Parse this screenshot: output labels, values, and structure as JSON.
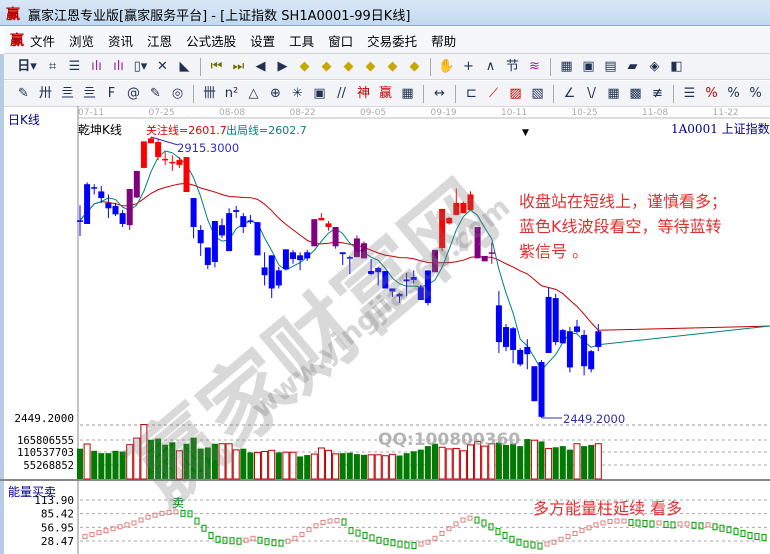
{
  "window": {
    "title": "赢家江恩专业版[赢家服务平台] - [上证指数  SH1A0001-99日K线]",
    "logo_text": "赢"
  },
  "menu": [
    "文件",
    "浏览",
    "资讯",
    "江恩",
    "公式选股",
    "设置",
    "工具",
    "窗口",
    "交易委托",
    "帮助"
  ],
  "toolbar1": [
    "period-day-dropdown",
    "chart-mode-icon",
    "doc-icon",
    "indicator3-icon",
    "indicator9-icon",
    "candle-type-dropdown",
    "kline-icon",
    "color-flag-icon",
    "first-icon",
    "last-icon",
    "prev-icon",
    "next-icon",
    "arrow-left-diamond-icon",
    "arrow-right-diamond-icon",
    "arrow-h-diamond-icon",
    "shrink-diamond-icon",
    "expand-diamond-icon",
    "expand-v-diamond-icon",
    "hand-icon",
    "crosshair-icon",
    "line-draw-icon",
    "section-icon",
    "wave-icon",
    "calendar-icon",
    "calculator-icon",
    "notepad-icon",
    "save-icon",
    "network-icon",
    "trade-icon"
  ],
  "toolbar1_day_label": "日",
  "toolbar2": [
    "pen-icon",
    "grid-icon",
    "gold-icon",
    "gold2-icon",
    "f-icon",
    "spiral-icon",
    "pen-ruler-icon",
    "circle-ruler-icon",
    "bars-icon",
    "n2-icon",
    "triangle-icon",
    "target-icon",
    "star-icon",
    "box-icon",
    "lines-icon",
    "shen-icon",
    "ying-icon",
    "grid2-icon",
    "width-icon",
    "frame-icon",
    "fan-icon",
    "box-fan-icon",
    "box-fan2-icon",
    "angle-icon",
    "zigzag-icon",
    "grid3-icon",
    "grid4-icon",
    "parallel-icon",
    "list-icon",
    "percent-fan-icon",
    "percent-icon",
    "percent-line-icon"
  ],
  "chart": {
    "period_label": "日K线",
    "indicator_name": "乾坤K线",
    "focus_line": "关注线=2601.7",
    "exit_line": "出局线=2602.7",
    "symbol": "1A0001  上证指数",
    "high_label": "2915.3000",
    "low_label": "2449.2000",
    "annotation": [
      "收盘站在短线上，谨慎看多；",
      "蓝色K线波段看空，等待蓝转",
      "紫信号  。"
    ],
    "energy_title": "能量买卖",
    "energy_note": "多方能量柱延续   看多",
    "sell_label": "卖"
  },
  "watermark": {
    "text": "赢家财富网",
    "url": "www.yingjia360.com",
    "qq": "QQ:100800360"
  },
  "colors": {
    "red": "#ff0000",
    "blue": "#0000ff",
    "purple": "#800080",
    "volume_green": "#007a00",
    "ma_long": "#c00000",
    "ma_short": "#008080",
    "energy_up": "#e08080",
    "energy_down": "#00a000"
  },
  "chart_data": [
    {
      "type": "candlestick",
      "title": "乾坤K线",
      "x_ticks": [
        "07-11",
        "07-25",
        "08-08",
        "08-22",
        "09-05",
        "09-19",
        "10-11",
        "10-25",
        "11-08",
        "11-22"
      ],
      "y_labels": [
        "2449.2000"
      ],
      "ylim": [
        2449.2,
        2915.3
      ],
      "candles_hi_top_bottom_lo_color": [
        [
          2802,
          2777,
          2777,
          2751,
          "b"
        ],
        [
          2840,
          2837,
          2771,
          2771,
          "b"
        ],
        [
          2837,
          2832,
          2832,
          2820,
          "b"
        ],
        [
          2834,
          2825,
          2814,
          2806,
          "b"
        ],
        [
          2820,
          2806,
          2797,
          2781,
          "b"
        ],
        [
          2806,
          2801,
          2787,
          2784,
          "b"
        ],
        [
          2794,
          2789,
          2771,
          2766,
          "b"
        ],
        [
          2829,
          2829,
          2769,
          2761,
          "p"
        ],
        [
          2859,
          2859,
          2815,
          2814,
          "p"
        ],
        [
          2908,
          2908,
          2864,
          2864,
          "r"
        ],
        [
          2915.3,
          2913,
          2905,
          2905,
          "r"
        ],
        [
          2913,
          2907,
          2882,
          2877,
          "r"
        ],
        [
          2890,
          2879,
          2879,
          2869,
          "r"
        ],
        [
          2885,
          2874,
          2874,
          2859,
          "r"
        ],
        [
          2882,
          2877,
          2869,
          2864,
          "r"
        ],
        [
          2882,
          2882,
          2824,
          2824,
          "r"
        ],
        [
          2814,
          2814,
          2766,
          2747,
          "b"
        ],
        [
          2769,
          2761,
          2739,
          2718,
          "b"
        ],
        [
          2732,
          2732,
          2703,
          2696,
          "b"
        ],
        [
          2776,
          2776,
          2708,
          2699,
          "b"
        ],
        [
          2780,
          2769,
          2752,
          2748,
          "b"
        ],
        [
          2797,
          2789,
          2726,
          2726,
          "b"
        ],
        [
          2801,
          2794,
          2791,
          2781,
          "b"
        ],
        [
          2789,
          2784,
          2766,
          2756,
          "b"
        ],
        [
          2786,
          2777,
          2777,
          2771,
          "b"
        ],
        [
          2774,
          2774,
          2719,
          2719,
          "b"
        ],
        [
          2724,
          2699,
          2686,
          2669,
          "b"
        ],
        [
          2719,
          2719,
          2664,
          2648,
          "b"
        ],
        [
          2700,
          2694,
          2669,
          2664,
          "b"
        ],
        [
          2729,
          2729,
          2696,
          2696,
          "b"
        ],
        [
          2728,
          2724,
          2713,
          2705,
          "b"
        ],
        [
          2724,
          2719,
          2711,
          2694,
          "b"
        ],
        [
          2728,
          2724,
          2714,
          2710,
          "b"
        ],
        [
          2779,
          2779,
          2734,
          2734,
          "p"
        ],
        [
          2789,
          2781,
          2777,
          2777,
          "r"
        ],
        [
          2776,
          2772,
          2766,
          2760,
          "r"
        ],
        [
          2766,
          2766,
          2734,
          2730,
          "p"
        ],
        [
          2724,
          2724,
          2721,
          2703,
          "b"
        ],
        [
          2718,
          2716,
          2714,
          2688,
          "b"
        ],
        [
          2752,
          2747,
          2716,
          2716,
          "p"
        ],
        [
          2742,
          2739,
          2714,
          2714,
          "p"
        ],
        [
          2713,
          2693,
          2688,
          2686,
          "b"
        ],
        [
          2700,
          2698,
          2691,
          2669,
          "b"
        ],
        [
          2693,
          2693,
          2664,
          2664,
          "b"
        ],
        [
          2664,
          2664,
          2659,
          2650,
          "b"
        ],
        [
          2657,
          2655,
          2651,
          2640,
          "b"
        ],
        [
          2690,
          2679,
          2676,
          2651,
          "b"
        ],
        [
          2694,
          2683,
          2678,
          2672,
          "b"
        ],
        [
          2670,
          2666,
          2645,
          2645,
          "b"
        ],
        [
          2694,
          2694,
          2640,
          2636,
          "b"
        ],
        [
          2728,
          2728,
          2691,
          2691,
          "p"
        ],
        [
          2796,
          2796,
          2731,
          2726,
          "r"
        ],
        [
          2783,
          2781,
          2772,
          2770,
          "r"
        ],
        [
          2830,
          2806,
          2786,
          2786,
          "r"
        ],
        [
          2808,
          2806,
          2789,
          2789,
          "r"
        ],
        [
          2825,
          2820,
          2794,
          2794,
          "r"
        ],
        [
          2766,
          2766,
          2714,
          2714,
          "p"
        ],
        [
          2718,
          2718,
          2709,
          2709,
          "p"
        ],
        [
          2740,
          2724,
          2724,
          2705,
          "p"
        ],
        [
          2660,
          2636,
          2575,
          2557,
          "b"
        ],
        [
          2605,
          2600,
          2567,
          2560,
          "b"
        ],
        [
          2600,
          2598,
          2562,
          2540,
          "b"
        ],
        [
          2565,
          2562,
          2538,
          2535,
          "b"
        ],
        [
          2580,
          2567,
          2555,
          2530,
          "b"
        ],
        [
          2535,
          2535,
          2477,
          2477,
          "b"
        ],
        [
          2545,
          2542,
          2451,
          2449.2,
          "b"
        ],
        [
          2665,
          2650,
          2557,
          2557,
          "b"
        ],
        [
          2655,
          2648,
          2575,
          2570,
          "b"
        ],
        [
          2597,
          2595,
          2573,
          2573,
          "b"
        ],
        [
          2600,
          2593,
          2533,
          2525,
          "b"
        ],
        [
          2612,
          2601,
          2592,
          2590,
          "b"
        ],
        [
          2595,
          2587,
          2535,
          2520,
          "b"
        ],
        [
          2562,
          2560,
          2530,
          2525,
          "b"
        ],
        [
          2605,
          2593,
          2567,
          2560,
          "b"
        ]
      ]
    },
    {
      "type": "bar",
      "title": "volume",
      "y_labels": [
        "165806555",
        "110537703",
        "55268852"
      ],
      "values_millions": [
        129,
        149,
        120,
        110,
        110,
        120,
        117,
        146,
        174,
        232,
        167,
        172,
        146,
        156,
        120,
        150,
        176,
        129,
        134,
        150,
        150,
        150,
        124,
        129,
        113,
        113,
        117,
        122,
        113,
        114,
        114,
        96,
        102,
        106,
        132,
        122,
        107,
        110,
        112,
        106,
        103,
        103,
        103,
        99,
        105,
        100,
        110,
        118,
        125,
        140,
        150,
        135,
        128,
        130,
        120,
        145,
        160,
        140,
        150,
        155,
        145,
        150,
        140,
        170,
        165,
        160,
        130,
        135,
        140,
        125,
        150,
        140,
        145,
        150
      ],
      "hollow": [
        0,
        1,
        0,
        0,
        0,
        0,
        0,
        1,
        1,
        1,
        0,
        0,
        0,
        0,
        1,
        0,
        0,
        0,
        0,
        0,
        1,
        1,
        1,
        0,
        0,
        1,
        1,
        1,
        0,
        1,
        1,
        0,
        0,
        1,
        1,
        1,
        1,
        0,
        0,
        0,
        0,
        1,
        1,
        1,
        1,
        0,
        0,
        0,
        0,
        0,
        0,
        1,
        1,
        1,
        1,
        1,
        1,
        1,
        1,
        0,
        0,
        0,
        0,
        0,
        1,
        0,
        1,
        0,
        0,
        0,
        1,
        0,
        0,
        1
      ]
    },
    {
      "type": "line",
      "title": "能量买卖",
      "y_labels": [
        "113.90",
        "85.42",
        "56.95",
        "28.47"
      ],
      "ylim": [
        0,
        113.9
      ],
      "values": [
        36,
        40,
        44,
        48,
        52,
        56,
        60,
        64,
        70,
        76,
        80,
        84,
        86,
        87,
        86,
        85,
        70,
        55,
        40,
        32,
        30,
        29,
        28,
        28,
        32,
        30,
        27,
        25,
        24,
        26,
        32,
        40,
        50,
        58,
        65,
        68,
        69,
        68,
        50,
        45,
        40,
        35,
        30,
        27,
        25,
        22,
        20,
        19,
        20,
        24,
        32,
        42,
        52,
        62,
        70,
        74,
        72,
        66,
        58,
        48,
        40,
        32,
        26,
        22,
        20,
        18,
        20,
        24,
        30,
        36,
        42,
        48,
        54,
        60,
        64,
        67,
        68,
        68,
        67,
        66,
        65,
        64,
        64,
        63,
        62,
        62,
        62,
        61,
        60,
        60,
        58,
        55,
        52,
        48,
        44,
        40,
        38,
        36
      ]
    }
  ]
}
